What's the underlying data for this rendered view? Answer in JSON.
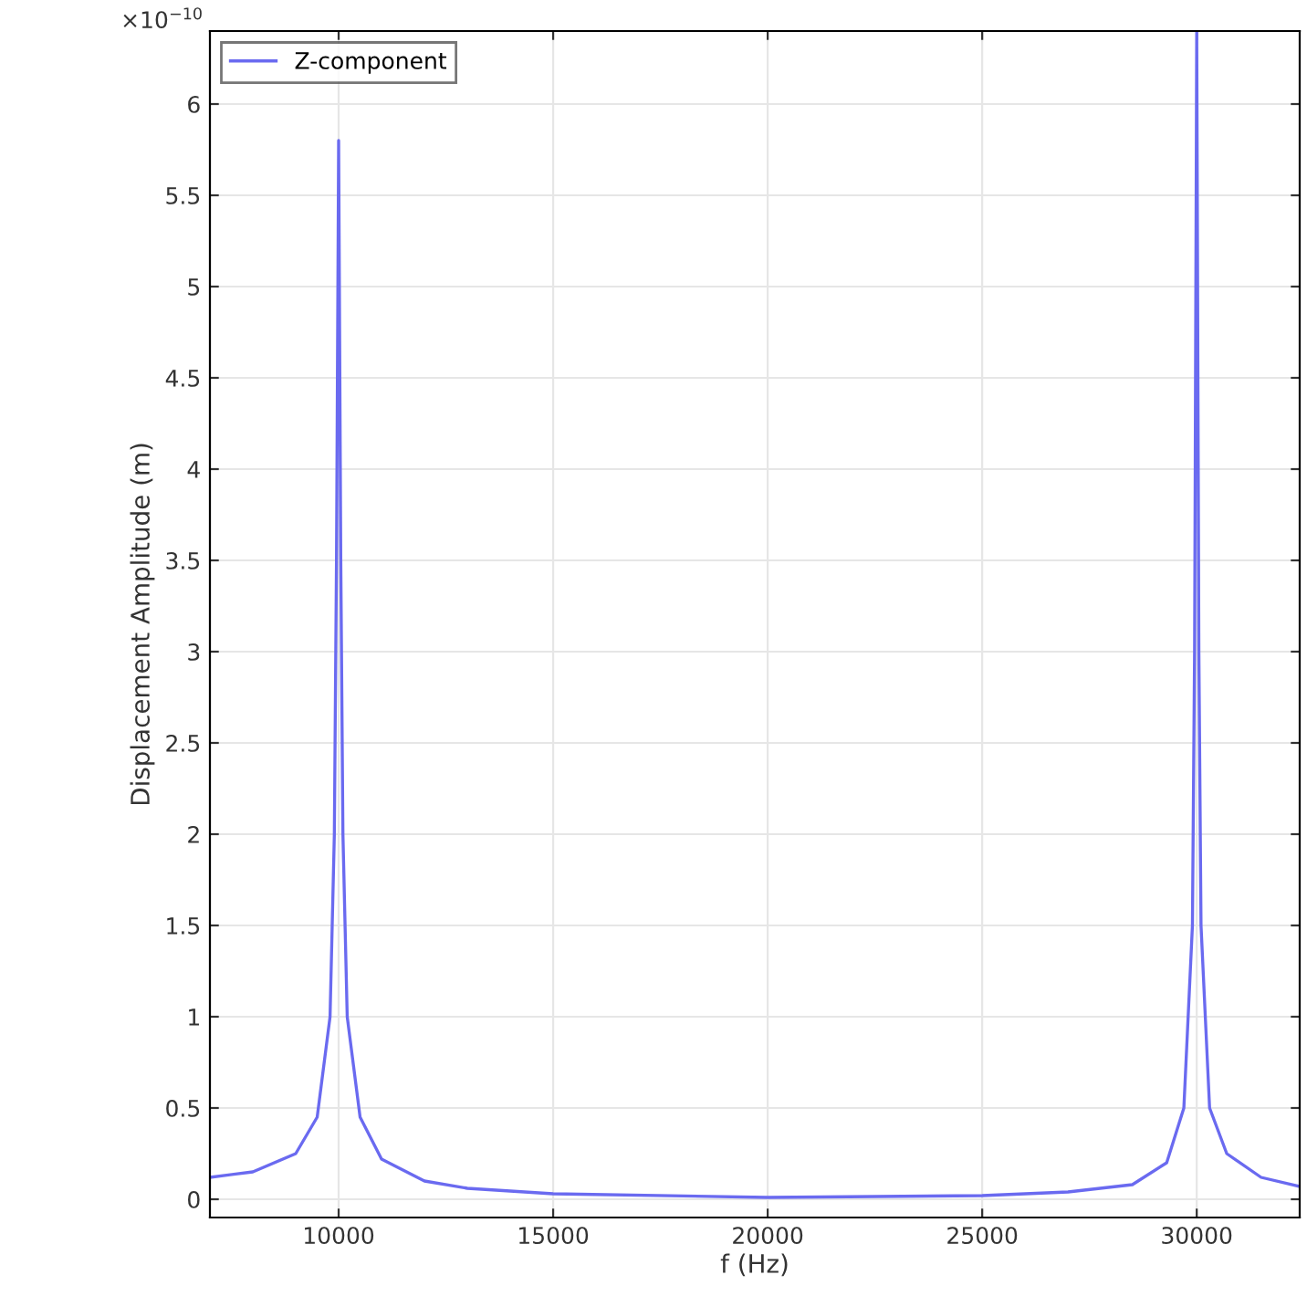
{
  "chart_data": {
    "type": "line",
    "xlabel": "f (Hz)",
    "ylabel": "Displacement Amplitude (m)",
    "annotations": [
      "×10$^{−10}$"
    ],
    "x": [
      7000,
      8000,
      9000,
      9500,
      9800,
      9900,
      9950,
      10000,
      10050,
      10100,
      10200,
      10500,
      11000,
      12000,
      13000,
      15000,
      20000,
      25000,
      27000,
      28500,
      29300,
      29700,
      29900,
      29950,
      30000,
      30050,
      30100,
      30300,
      30700,
      31500,
      32400
    ],
    "series": [
      {
        "name": "Z-component",
        "color": "#6a6af0",
        "values": [
          0.12,
          0.15,
          0.25,
          0.45,
          1.0,
          2.0,
          3.5,
          5.8,
          3.5,
          2.0,
          1.0,
          0.45,
          0.22,
          0.1,
          0.06,
          0.03,
          0.01,
          0.02,
          0.04,
          0.08,
          0.2,
          0.5,
          1.5,
          3.0,
          6.4,
          3.0,
          1.5,
          0.5,
          0.25,
          0.12,
          0.07
        ]
      }
    ],
    "xlim": [
      7000,
      32400
    ],
    "ylim": [
      -0.1,
      6.4
    ],
    "xticks": [
      10000,
      15000,
      20000,
      25000,
      30000
    ],
    "yticks": [
      0,
      0.5,
      1,
      1.5,
      2,
      2.5,
      3,
      3.5,
      4,
      4.5,
      5,
      5.5,
      6
    ],
    "grid": true,
    "legend": "top left",
    "line_style": "solid",
    "marker": "none"
  }
}
